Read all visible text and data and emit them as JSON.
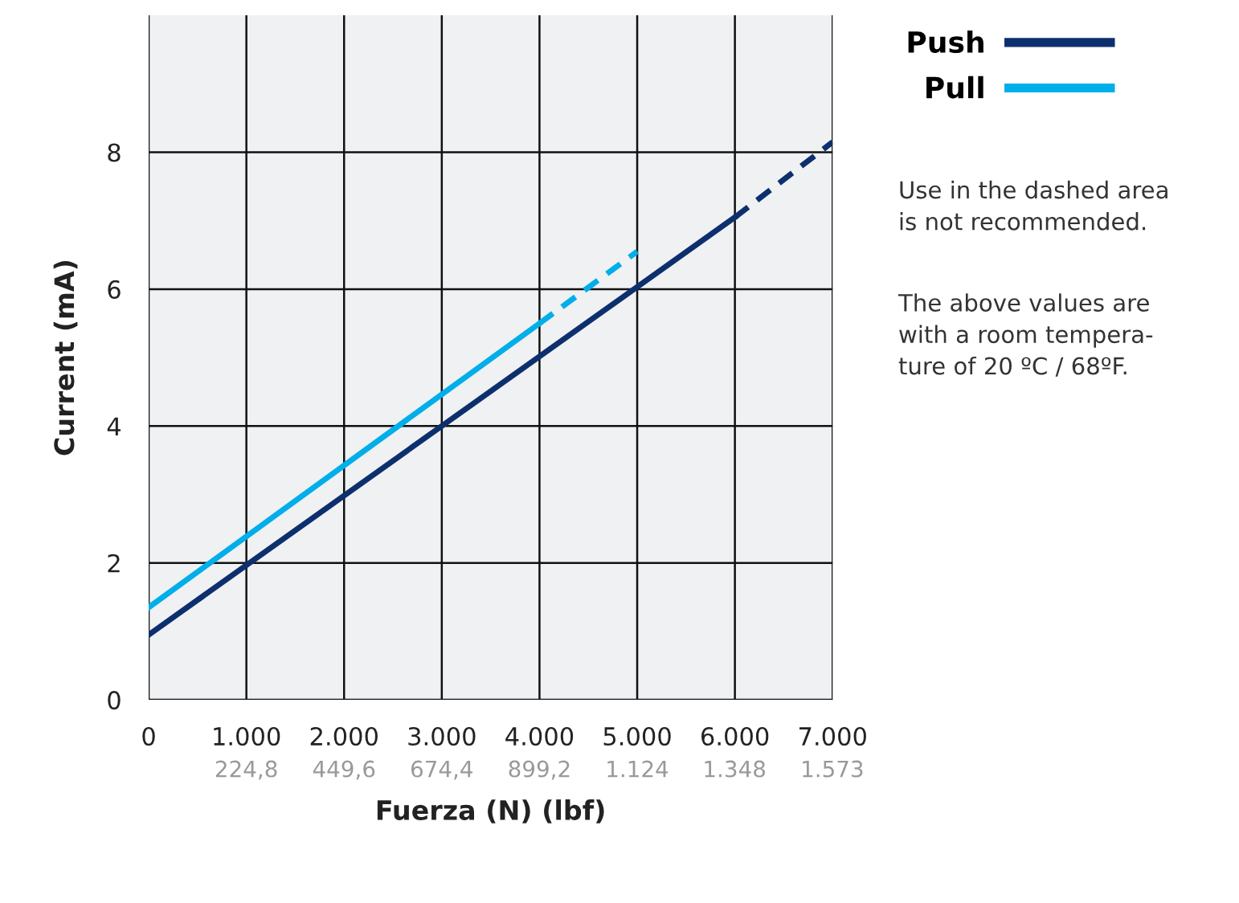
{
  "chart_data": {
    "type": "line",
    "xlabel": "Fuerza (N) (lbf)",
    "ylabel": "Current (mA)",
    "xlim": [
      0,
      7000
    ],
    "ylim": [
      0,
      10
    ],
    "x2lim": [
      0,
      1573.7
    ],
    "xticks": [
      0,
      {
        "value": 1000,
        "label": "1.000"
      },
      {
        "value": 2000,
        "label": "2.000"
      },
      {
        "value": 3000,
        "label": "3.000"
      },
      {
        "value": 4000,
        "label": "4.000"
      },
      {
        "value": 5000,
        "label": "5.000"
      },
      {
        "value": 6000,
        "label": "6.000"
      },
      {
        "value": 7000,
        "label": "7.000"
      }
    ],
    "x2ticks": [
      {
        "value": 224.8,
        "label": "224,8"
      },
      {
        "value": 449.6,
        "label": "449,6"
      },
      {
        "value": 674.4,
        "label": "674,4"
      },
      {
        "value": 899.2,
        "label": "899,2"
      },
      {
        "value": 1124,
        "label": "1.124"
      },
      {
        "value": 1348,
        "label": "1.348"
      },
      {
        "value": 1573,
        "label": "1.573"
      }
    ],
    "yticks": [
      0,
      2,
      4,
      6,
      8
    ],
    "grid": true,
    "legend": "top right",
    "marker": "none",
    "series": [
      {
        "name": "Push",
        "color": "#0d2f6e",
        "x": [
          0,
          6000
        ],
        "values": [
          0.95,
          7.05
        ],
        "line_style": "solid"
      },
      {
        "name": "Pull",
        "color": "#00aeea",
        "x": [
          0,
          4000
        ],
        "values": [
          1.35,
          5.5
        ],
        "line_style": "solid"
      },
      {
        "color": "#0d2f6e",
        "x": [
          6000,
          7000
        ],
        "values": [
          7.05,
          8.15
        ],
        "line_style": "dashed"
      },
      {
        "color": "#00aeea",
        "x": [
          4000,
          5000
        ],
        "values": [
          5.5,
          6.55
        ],
        "line_style": "dashed"
      }
    ],
    "annotations": [
      "Use in the dashed area\nis not recommended.",
      "The above values are\nwith a room tempera-\nture of 20 ºC / 68ºF."
    ]
  }
}
